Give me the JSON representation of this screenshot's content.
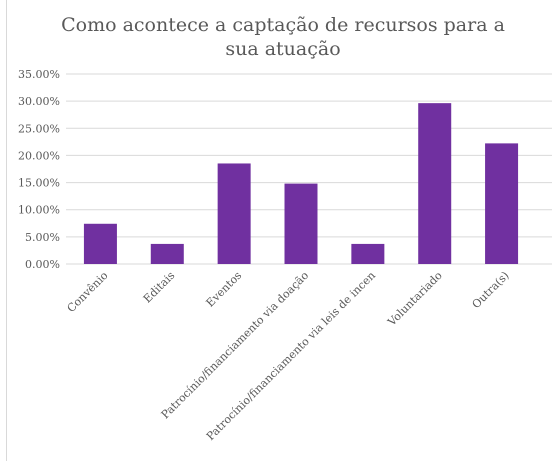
{
  "chart_data": {
    "type": "bar",
    "title_lines": [
      "Como acontece a captação de recursos para a",
      "sua atuação"
    ],
    "categories": [
      "Convênio",
      "Editais",
      "Eventos",
      "Patrocínio/financiamento via doação",
      "Patrocínio/financiamento via leis de incen",
      "Voluntariado",
      "Outra(s)"
    ],
    "values": [
      7.41,
      3.7,
      18.52,
      14.81,
      3.7,
      29.63,
      22.22
    ],
    "ylim": [
      0,
      35
    ],
    "yticks": [
      "0.00%",
      "5.00%",
      "10.00%",
      "15.00%",
      "20.00%",
      "25.00%",
      "30.00%",
      "35.00%"
    ],
    "ytick_values": [
      0,
      5,
      10,
      15,
      20,
      25,
      30,
      35
    ],
    "grid": true,
    "legend": "none",
    "bar_color": "#7030a0",
    "grid_color": "#d9d9d9"
  }
}
